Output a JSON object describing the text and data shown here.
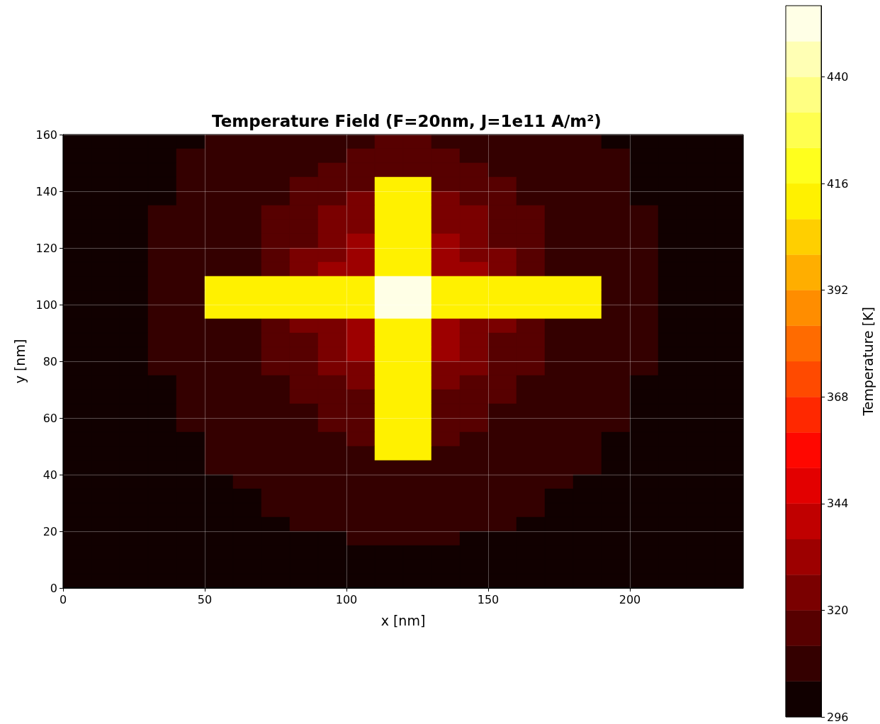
{
  "chart_data": {
    "type": "heatmap",
    "title": "Temperature Field (F=20nm, J=1e11 A/m²)",
    "xlabel": "x [nm]",
    "ylabel": "y [nm]",
    "clabel": "Temperature [K]",
    "x": [
      5,
      15,
      25,
      35,
      45,
      55,
      65,
      75,
      85,
      95,
      105,
      115,
      125,
      135,
      145,
      155,
      165,
      175,
      185,
      195,
      205,
      215,
      225,
      235
    ],
    "y": [
      157.5,
      152.5,
      147.5,
      142.5,
      137.5,
      132.5,
      127.5,
      122.5,
      117.5,
      112.5,
      107.5,
      102.5,
      97.5,
      92.5,
      87.5,
      82.5,
      77.5,
      72.5,
      67.5,
      62.5,
      57.5,
      52.5,
      47.5,
      42.5,
      37.5,
      32.5,
      27.5,
      22.5,
      17.5,
      12.5,
      7.5,
      2.5
    ],
    "cells": [
      [
        300,
        300,
        300,
        300,
        300,
        308,
        308,
        308,
        308,
        308,
        308,
        316,
        316,
        308,
        308,
        308,
        308,
        308,
        308,
        300,
        300,
        300,
        300,
        300
      ],
      [
        300,
        300,
        300,
        300,
        308,
        308,
        308,
        308,
        308,
        308,
        316,
        316,
        316,
        316,
        308,
        308,
        308,
        308,
        308,
        308,
        300,
        300,
        300,
        300
      ],
      [
        300,
        300,
        300,
        300,
        308,
        308,
        308,
        308,
        308,
        316,
        316,
        316,
        316,
        316,
        316,
        308,
        308,
        308,
        308,
        308,
        300,
        300,
        300,
        300
      ],
      [
        300,
        300,
        300,
        300,
        308,
        308,
        308,
        308,
        316,
        316,
        316,
        412,
        412,
        316,
        316,
        316,
        308,
        308,
        308,
        308,
        300,
        300,
        300,
        300
      ],
      [
        300,
        300,
        300,
        300,
        308,
        308,
        308,
        308,
        316,
        316,
        324,
        412,
        412,
        324,
        316,
        316,
        308,
        308,
        308,
        308,
        300,
        300,
        300,
        300
      ],
      [
        300,
        300,
        300,
        308,
        308,
        308,
        308,
        316,
        316,
        324,
        324,
        412,
        412,
        324,
        324,
        316,
        316,
        308,
        308,
        308,
        308,
        300,
        300,
        300
      ],
      [
        300,
        300,
        300,
        308,
        308,
        308,
        308,
        316,
        316,
        324,
        324,
        412,
        412,
        324,
        324,
        316,
        316,
        308,
        308,
        308,
        308,
        300,
        300,
        300
      ],
      [
        300,
        300,
        300,
        308,
        308,
        308,
        308,
        316,
        316,
        324,
        332,
        412,
        412,
        332,
        324,
        316,
        316,
        308,
        308,
        308,
        308,
        300,
        300,
        300
      ],
      [
        300,
        300,
        300,
        308,
        308,
        308,
        308,
        316,
        324,
        324,
        332,
        412,
        412,
        332,
        324,
        324,
        316,
        308,
        308,
        308,
        308,
        300,
        300,
        300
      ],
      [
        300,
        300,
        300,
        308,
        308,
        308,
        308,
        316,
        324,
        332,
        332,
        412,
        412,
        332,
        332,
        324,
        316,
        308,
        308,
        308,
        308,
        300,
        300,
        300
      ],
      [
        300,
        300,
        300,
        308,
        308,
        412,
        412,
        412,
        412,
        412,
        412,
        452,
        452,
        412,
        412,
        412,
        412,
        412,
        412,
        308,
        308,
        300,
        300,
        300
      ],
      [
        300,
        300,
        300,
        308,
        308,
        412,
        412,
        412,
        412,
        412,
        412,
        452,
        452,
        412,
        412,
        412,
        412,
        412,
        412,
        308,
        308,
        300,
        300,
        300
      ],
      [
        300,
        300,
        300,
        308,
        308,
        412,
        412,
        412,
        412,
        412,
        412,
        452,
        452,
        412,
        412,
        412,
        412,
        412,
        412,
        308,
        308,
        300,
        300,
        300
      ],
      [
        300,
        300,
        300,
        308,
        308,
        308,
        308,
        316,
        324,
        324,
        332,
        412,
        412,
        332,
        324,
        324,
        316,
        308,
        308,
        308,
        308,
        300,
        300,
        300
      ],
      [
        300,
        300,
        300,
        308,
        308,
        308,
        308,
        316,
        316,
        324,
        332,
        412,
        412,
        332,
        324,
        316,
        316,
        308,
        308,
        308,
        308,
        300,
        300,
        300
      ],
      [
        300,
        300,
        300,
        308,
        308,
        308,
        308,
        316,
        316,
        324,
        332,
        412,
        412,
        332,
        324,
        316,
        316,
        308,
        308,
        308,
        308,
        300,
        300,
        300
      ],
      [
        300,
        300,
        300,
        308,
        308,
        308,
        308,
        316,
        316,
        324,
        324,
        412,
        412,
        324,
        324,
        316,
        316,
        308,
        308,
        308,
        308,
        300,
        300,
        300
      ],
      [
        300,
        300,
        300,
        300,
        308,
        308,
        308,
        308,
        316,
        316,
        324,
        412,
        412,
        324,
        316,
        316,
        308,
        308,
        308,
        308,
        300,
        300,
        300,
        300
      ],
      [
        300,
        300,
        300,
        300,
        308,
        308,
        308,
        308,
        316,
        316,
        316,
        412,
        412,
        316,
        316,
        316,
        308,
        308,
        308,
        308,
        300,
        300,
        300,
        300
      ],
      [
        300,
        300,
        300,
        300,
        308,
        308,
        308,
        308,
        308,
        316,
        316,
        412,
        412,
        316,
        316,
        308,
        308,
        308,
        308,
        308,
        300,
        300,
        300,
        300
      ],
      [
        300,
        300,
        300,
        300,
        308,
        308,
        308,
        308,
        308,
        316,
        316,
        412,
        412,
        316,
        316,
        308,
        308,
        308,
        308,
        308,
        300,
        300,
        300,
        300
      ],
      [
        300,
        300,
        300,
        300,
        300,
        308,
        308,
        308,
        308,
        308,
        316,
        412,
        412,
        316,
        308,
        308,
        308,
        308,
        308,
        300,
        300,
        300,
        300,
        300
      ],
      [
        300,
        300,
        300,
        300,
        300,
        308,
        308,
        308,
        308,
        308,
        308,
        412,
        412,
        308,
        308,
        308,
        308,
        308,
        308,
        300,
        300,
        300,
        300,
        300
      ],
      [
        300,
        300,
        300,
        300,
        300,
        308,
        308,
        308,
        308,
        308,
        308,
        308,
        308,
        308,
        308,
        308,
        308,
        308,
        308,
        300,
        300,
        300,
        300,
        300
      ],
      [
        300,
        300,
        300,
        300,
        300,
        300,
        308,
        308,
        308,
        308,
        308,
        308,
        308,
        308,
        308,
        308,
        308,
        308,
        300,
        300,
        300,
        300,
        300,
        300
      ],
      [
        300,
        300,
        300,
        300,
        300,
        300,
        300,
        308,
        308,
        308,
        308,
        308,
        308,
        308,
        308,
        308,
        308,
        300,
        300,
        300,
        300,
        300,
        300,
        300
      ],
      [
        300,
        300,
        300,
        300,
        300,
        300,
        300,
        308,
        308,
        308,
        308,
        308,
        308,
        308,
        308,
        308,
        308,
        300,
        300,
        300,
        300,
        300,
        300,
        300
      ],
      [
        300,
        300,
        300,
        300,
        300,
        300,
        300,
        300,
        308,
        308,
        308,
        308,
        308,
        308,
        308,
        308,
        300,
        300,
        300,
        300,
        300,
        300,
        300,
        300
      ],
      [
        300,
        300,
        300,
        300,
        300,
        300,
        300,
        300,
        300,
        300,
        308,
        308,
        308,
        308,
        300,
        300,
        300,
        300,
        300,
        300,
        300,
        300,
        300,
        300
      ],
      [
        300,
        300,
        300,
        300,
        300,
        300,
        300,
        300,
        300,
        300,
        300,
        300,
        300,
        300,
        300,
        300,
        300,
        300,
        300,
        300,
        300,
        300,
        300,
        300
      ],
      [
        300,
        300,
        300,
        300,
        300,
        300,
        300,
        300,
        300,
        300,
        300,
        300,
        300,
        300,
        300,
        300,
        300,
        300,
        300,
        300,
        300,
        300,
        300,
        300
      ],
      [
        300,
        300,
        300,
        300,
        300,
        300,
        300,
        300,
        300,
        300,
        300,
        300,
        300,
        300,
        300,
        300,
        300,
        300,
        300,
        300,
        300,
        300,
        300,
        300
      ]
    ],
    "xlim": [
      0,
      240
    ],
    "xticks": [
      0,
      50,
      100,
      150,
      200
    ],
    "ylim": [
      0,
      160
    ],
    "yticks": [
      0,
      20,
      40,
      60,
      80,
      100,
      120,
      140,
      160
    ],
    "clim": [
      296,
      456
    ],
    "cticks": [
      296,
      320,
      344,
      368,
      392,
      416,
      440
    ],
    "grid": true
  }
}
